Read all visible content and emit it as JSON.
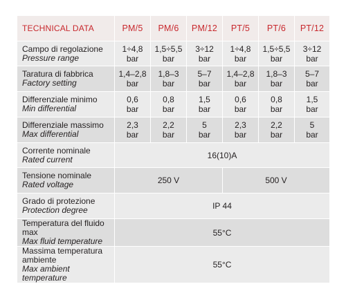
{
  "table": {
    "header": {
      "label": "TECHNICAL DATA",
      "models": [
        "PM/5",
        "PM/6",
        "PM/12",
        "PT/5",
        "PT/6",
        "PT/12"
      ]
    },
    "rows": [
      {
        "label_it": "Campo di regolazione",
        "label_en": "Pressure range",
        "values": [
          {
            "num": "1÷4,8",
            "unit": "bar"
          },
          {
            "num": "1,5÷5,5",
            "unit": "bar"
          },
          {
            "num": "3÷12",
            "unit": "bar"
          },
          {
            "num": "1÷4,8",
            "unit": "bar"
          },
          {
            "num": "1,5÷5,5",
            "unit": "bar"
          },
          {
            "num": "3÷12",
            "unit": "bar"
          }
        ]
      },
      {
        "label_it": "Taratura di fabbrica",
        "label_en": "Factory setting",
        "values": [
          {
            "num": "1,4–2,8",
            "unit": "bar"
          },
          {
            "num": "1,8–3",
            "unit": "bar"
          },
          {
            "num": "5–7",
            "unit": "bar"
          },
          {
            "num": "1,4–2,8",
            "unit": "bar"
          },
          {
            "num": "1,8–3",
            "unit": "bar"
          },
          {
            "num": "5–7",
            "unit": "bar"
          }
        ]
      },
      {
        "label_it": "Differenziale minimo",
        "label_en": "Min differential",
        "values": [
          {
            "num": "0,6",
            "unit": "bar"
          },
          {
            "num": "0,8",
            "unit": "bar"
          },
          {
            "num": "1,5",
            "unit": "bar"
          },
          {
            "num": "0,6",
            "unit": "bar"
          },
          {
            "num": "0,8",
            "unit": "bar"
          },
          {
            "num": "1,5",
            "unit": "bar"
          }
        ]
      },
      {
        "label_it": "Differenziale massimo",
        "label_en": "Max differential",
        "values": [
          {
            "num": "2,3",
            "unit": "bar"
          },
          {
            "num": "2,2",
            "unit": "bar"
          },
          {
            "num": "5",
            "unit": "bar"
          },
          {
            "num": "2,3",
            "unit": "bar"
          },
          {
            "num": "2,2",
            "unit": "bar"
          },
          {
            "num": "5",
            "unit": "bar"
          }
        ]
      },
      {
        "label_it": "Corrente nominale",
        "label_en": "Rated current",
        "all": "16(10)A"
      },
      {
        "label_it": "Tensione nominale",
        "label_en": "Rated voltage",
        "pm": "250 V",
        "pt": "500 V"
      },
      {
        "label_it": "Grado di protezione",
        "label_en": "Protection degree",
        "all": "IP 44"
      },
      {
        "label_it": "Temperatura del fluido max",
        "label_en": "Max fluid temperature",
        "all": "55°C"
      },
      {
        "label_it_1": "Massima temperatura",
        "label_it_2": "ambiente",
        "label_en": "Max ambient temperature",
        "all": "55°C"
      }
    ]
  }
}
